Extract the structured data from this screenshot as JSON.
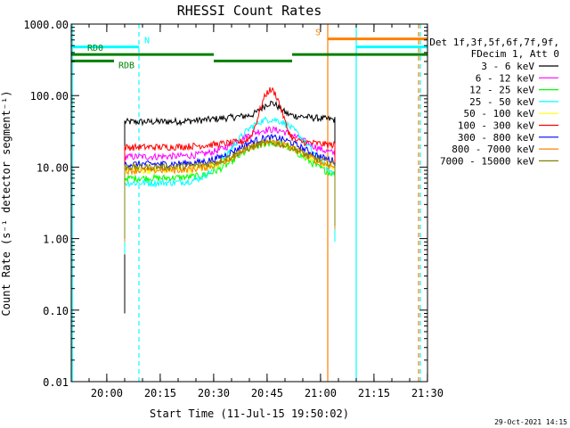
{
  "chart_data": {
    "type": "line",
    "title": "RHESSI Count Rates",
    "xlabel": "Start Time (11-Jul-15 19:50:02)",
    "ylabel": "Count Rate (s⁻¹ detector segment⁻¹)",
    "ylog": true,
    "ylim": [
      0.01,
      1000
    ],
    "xlim_minutes": [
      0,
      100
    ],
    "x_ticks": [
      "20:00",
      "20:15",
      "20:30",
      "20:45",
      "21:00",
      "21:15",
      "21:30"
    ],
    "x_tick_minutes": [
      9.97,
      24.97,
      39.97,
      54.97,
      69.97,
      84.97,
      99.97
    ],
    "y_ticks": [
      "0.01",
      "0.10",
      "1.00",
      "10.00",
      "100.00",
      "1000.00"
    ],
    "y_tick_values": [
      0.01,
      0.1,
      1,
      10,
      100,
      1000
    ],
    "legend_header": [
      "Det 1f,3f,5f,6f,7f,9f,",
      "FDecim 1, Att 0"
    ],
    "footer_date": "29-Oct-2021 14:15",
    "data_window_minutes": [
      15,
      74
    ],
    "flare_peak_minute": 56,
    "series": [
      {
        "name": "3 - 6 keV",
        "color": "#000000",
        "base": 43,
        "peak": 68
      },
      {
        "name": "6 - 12 keV",
        "color": "#ff00ff",
        "base": 14,
        "peak": 30
      },
      {
        "name": "12 - 25 keV",
        "color": "#00ff00",
        "base": 7,
        "peak": 20
      },
      {
        "name": "25 - 50 keV",
        "color": "#00ffff",
        "base": 6,
        "peak": 45
      },
      {
        "name": "50 - 100 keV",
        "color": "#ffff00",
        "base": 9,
        "peak": 20
      },
      {
        "name": "100 - 300 keV",
        "color": "#ff0000",
        "base": 19,
        "peak": 115
      },
      {
        "name": "300 - 800 keV",
        "color": "#0000ff",
        "base": 11,
        "peak": 23
      },
      {
        "name": "800 - 7000 keV",
        "color": "#ff8000",
        "base": 9,
        "peak": 20
      },
      {
        "name": "7000 - 15000 keV",
        "color": "#808000",
        "base": 10,
        "peak": 19
      }
    ],
    "status_bars": [
      {
        "label": "N",
        "color": "#00ffff",
        "segments": [
          [
            0,
            19
          ],
          [
            80,
            100
          ]
        ],
        "level": 480
      },
      {
        "label": "S",
        "color": "#ff8000",
        "segments": [
          [
            72,
            100
          ]
        ],
        "level": 620
      },
      {
        "label": "RD0",
        "color": "#008000",
        "segments": [
          [
            0,
            40
          ],
          [
            62,
            100
          ]
        ],
        "level": 375
      },
      {
        "label": "RDB",
        "color": "#008000",
        "segments": [
          [
            0,
            12
          ],
          [
            40,
            62
          ]
        ],
        "level": 305
      }
    ],
    "vlines": [
      {
        "minute": 0.3,
        "color": "#00ffff",
        "style": "solid"
      },
      {
        "minute": 19,
        "color": "#00ffff",
        "style": "dashed"
      },
      {
        "minute": 72,
        "color": "#ff8000",
        "style": "solid"
      },
      {
        "minute": 80,
        "color": "#00ffff",
        "style": "solid"
      },
      {
        "minute": 97.5,
        "color": "#ff8000",
        "style": "dashed"
      },
      {
        "minute": 98,
        "color": "#00ffff",
        "style": "dashed"
      }
    ]
  }
}
